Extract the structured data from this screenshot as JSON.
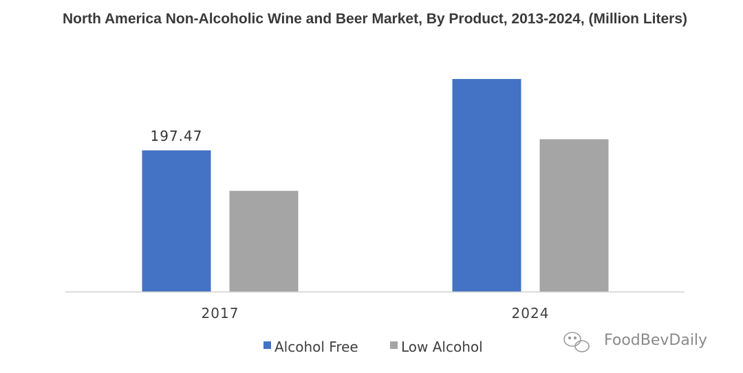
{
  "chart_data": {
    "type": "bar",
    "title": "North America Non-Alcoholic Wine and Beer Market, By Product, 2013-2024, (Million Liters)",
    "categories": [
      "2017",
      "2024"
    ],
    "series": [
      {
        "name": "Alcohol Free",
        "color": "#4472c4",
        "values": [
          197.47,
          297
        ]
      },
      {
        "name": "Low Alcohol",
        "color": "#a5a5a5",
        "values": [
          141,
          213
        ]
      }
    ],
    "data_labels": [
      {
        "series": 0,
        "category": 0,
        "text": "197.47"
      }
    ],
    "ylim": [
      0,
      320
    ],
    "grid": false,
    "legend_position": "bottom-center"
  },
  "watermark": {
    "text": "FoodBevDaily",
    "icon": "wechat-icon"
  }
}
